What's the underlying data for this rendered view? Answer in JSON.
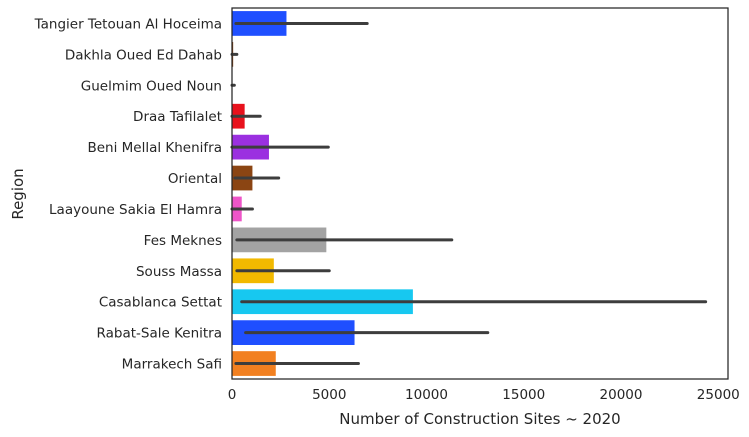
{
  "chart_data": {
    "type": "bar",
    "orientation": "horizontal",
    "xlabel": "Number of Construction Sites ~ 2020",
    "ylabel": "Region",
    "xlim": [
      0,
      25500
    ],
    "xticks": [
      0,
      5000,
      10000,
      15000,
      20000,
      25000
    ],
    "grid": false,
    "categories": [
      "Tangier Tetouan Al Hoceima",
      "Dakhla Oued Ed Dahab",
      "Guelmim Oued Noun",
      "Draa Tafilalet",
      "Beni Mellal Khenifra",
      "Oriental",
      "Laayoune Sakia El Hamra",
      "Fes Meknes",
      "Souss Massa",
      "Casablanca Settat",
      "Rabat-Sale Kenitra",
      "Marrakech Safi"
    ],
    "values": [
      2800,
      60,
      20,
      650,
      1900,
      1050,
      500,
      4850,
      2150,
      9300,
      6300,
      2250
    ],
    "error_low": [
      200,
      0,
      0,
      0,
      0,
      150,
      0,
      250,
      250,
      500,
      700,
      200
    ],
    "error_high": [
      6950,
      250,
      120,
      1450,
      4950,
      2400,
      1050,
      11300,
      5000,
      24350,
      13150,
      6500
    ],
    "colors": [
      "#1f4fff",
      "#8b4513",
      "#9a9a9a",
      "#e8111c",
      "#9b30e0",
      "#8b4513",
      "#ee55c8",
      "#a3a3a3",
      "#f2b900",
      "#17c8f0",
      "#1f4fff",
      "#f28020"
    ]
  }
}
